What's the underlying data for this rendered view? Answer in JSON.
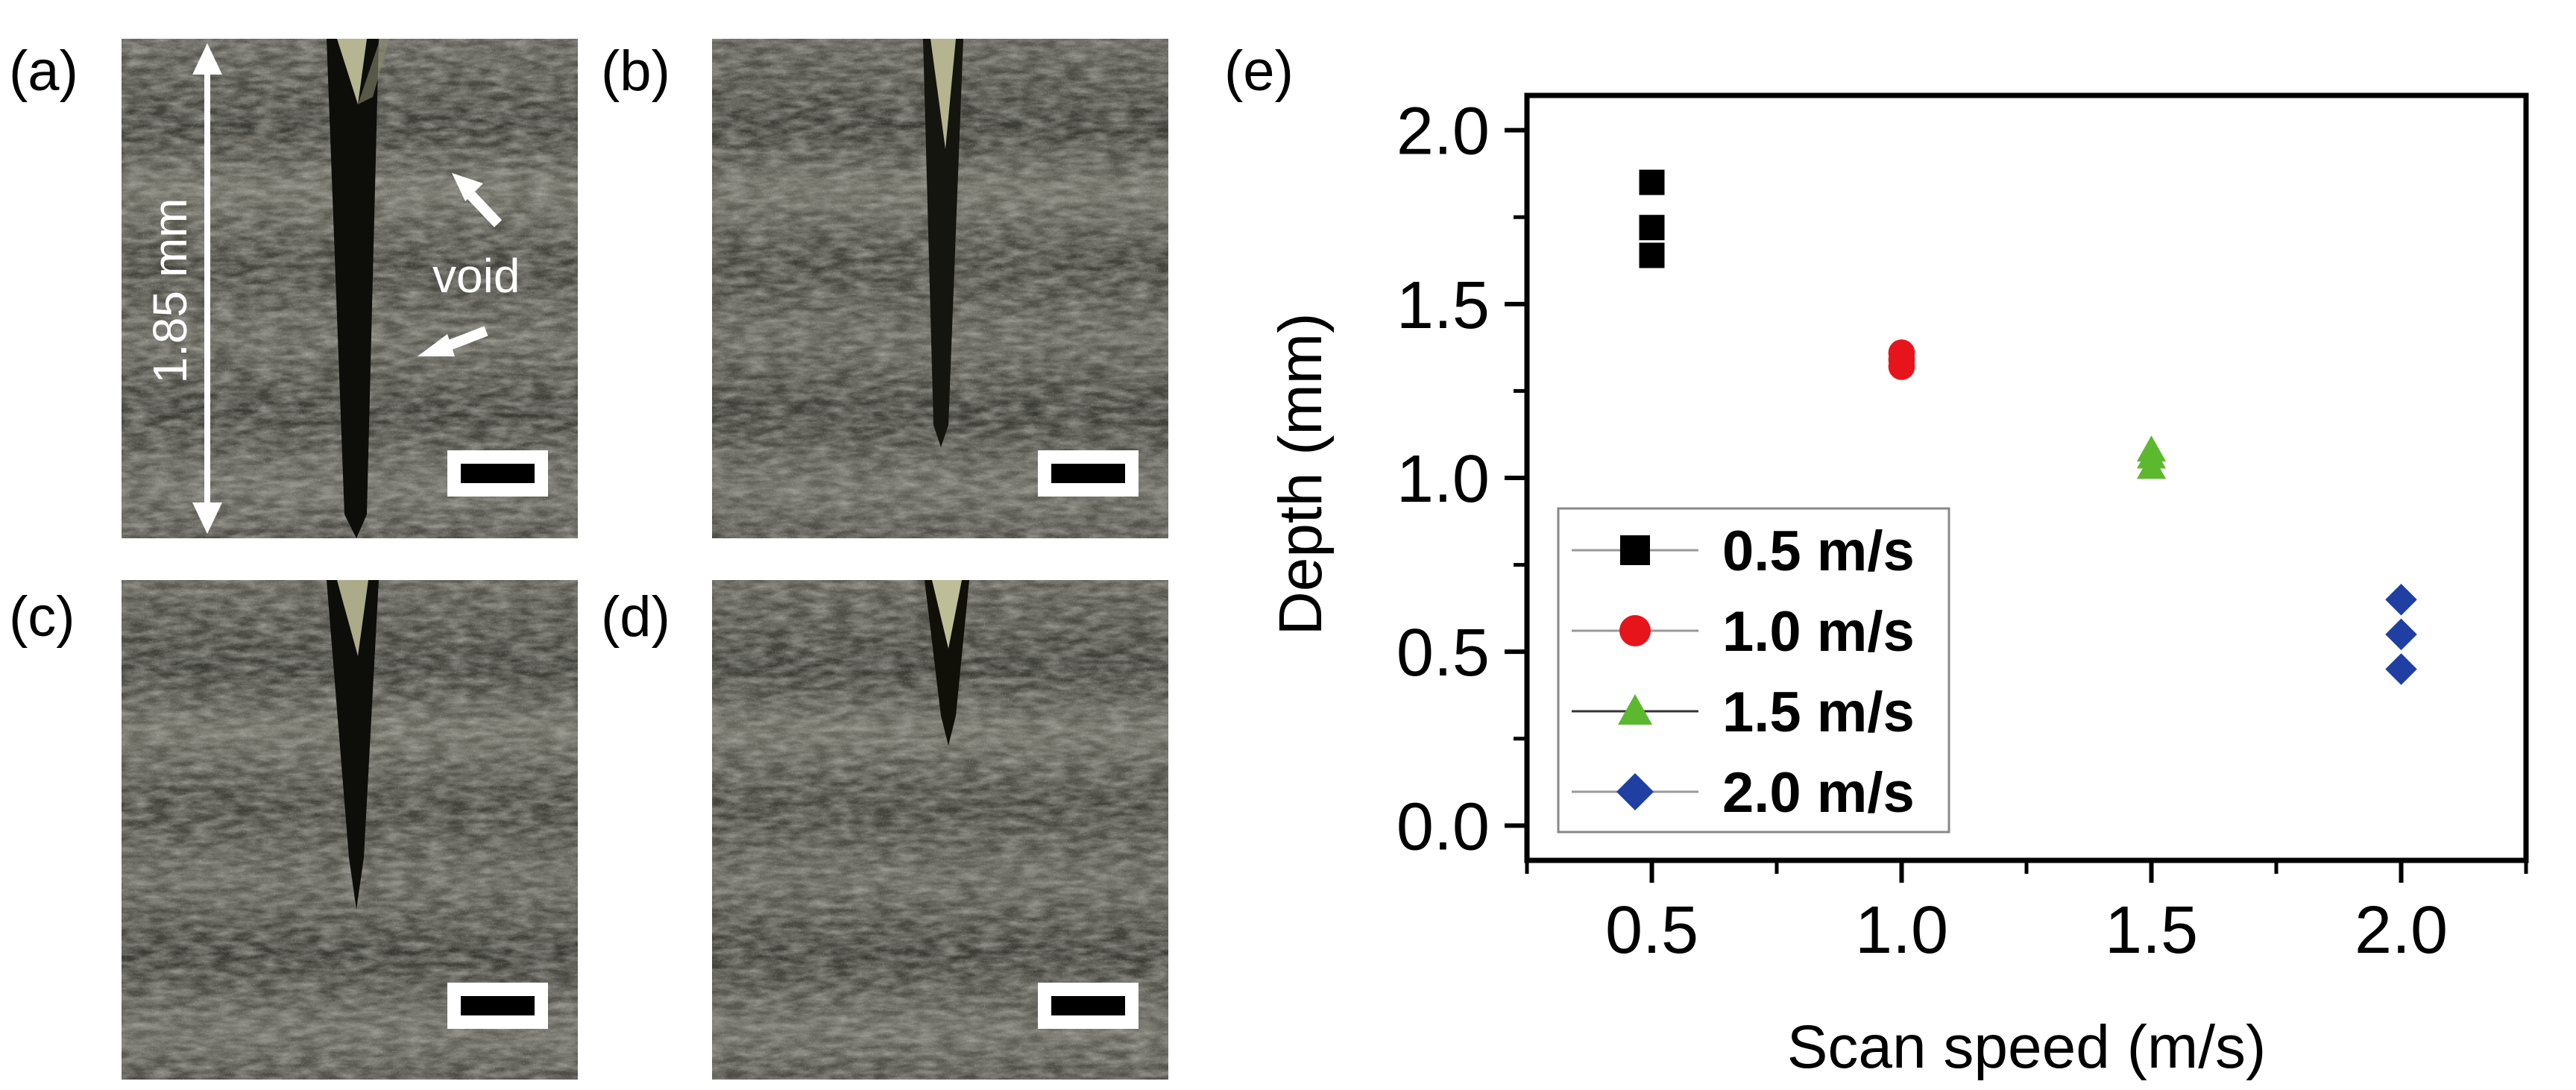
{
  "panel_labels": {
    "a": "(a)",
    "b": "(b)",
    "c": "(c)",
    "d": "(d)",
    "e": "(e)"
  },
  "micrograph_annotations": {
    "dimension": "1.85 mm",
    "void": "void"
  },
  "colors": {
    "series_0_5": "#000000",
    "series_1_0": "#e8141b",
    "series_1_5": "#5cb82e",
    "series_2_0": "#1f3fa3",
    "micrograph_base": "#4a4a44"
  },
  "chart_data": {
    "type": "scatter",
    "xlabel": "Scan speed (m/s)",
    "ylabel": "Depth (mm)",
    "xlim": [
      0.25,
      2.25
    ],
    "ylim": [
      -0.1,
      2.1
    ],
    "x_ticks": [
      "0.5",
      "1.0",
      "1.5",
      "2.0"
    ],
    "y_ticks": [
      "0.0",
      "0.5",
      "1.0",
      "1.5",
      "2.0"
    ],
    "grid": false,
    "legend_position": "bottom-left",
    "series": [
      {
        "name": "0.5 m/s",
        "marker": "square",
        "color": "#000000",
        "x": [
          0.5,
          0.5,
          0.5
        ],
        "y": [
          1.85,
          1.72,
          1.64
        ]
      },
      {
        "name": "1.0 m/s",
        "marker": "circle",
        "color": "#e8141b",
        "x": [
          1.0,
          1.0,
          1.0
        ],
        "y": [
          1.36,
          1.34,
          1.32
        ]
      },
      {
        "name": "1.5 m/s",
        "marker": "triangle",
        "color": "#5cb82e",
        "x": [
          1.5,
          1.5,
          1.5
        ],
        "y": [
          1.08,
          1.06,
          1.03
        ]
      },
      {
        "name": "2.0 m/s",
        "marker": "diamond",
        "color": "#1f3fa3",
        "x": [
          2.0,
          2.0,
          2.0
        ],
        "y": [
          0.65,
          0.55,
          0.45
        ]
      }
    ]
  }
}
